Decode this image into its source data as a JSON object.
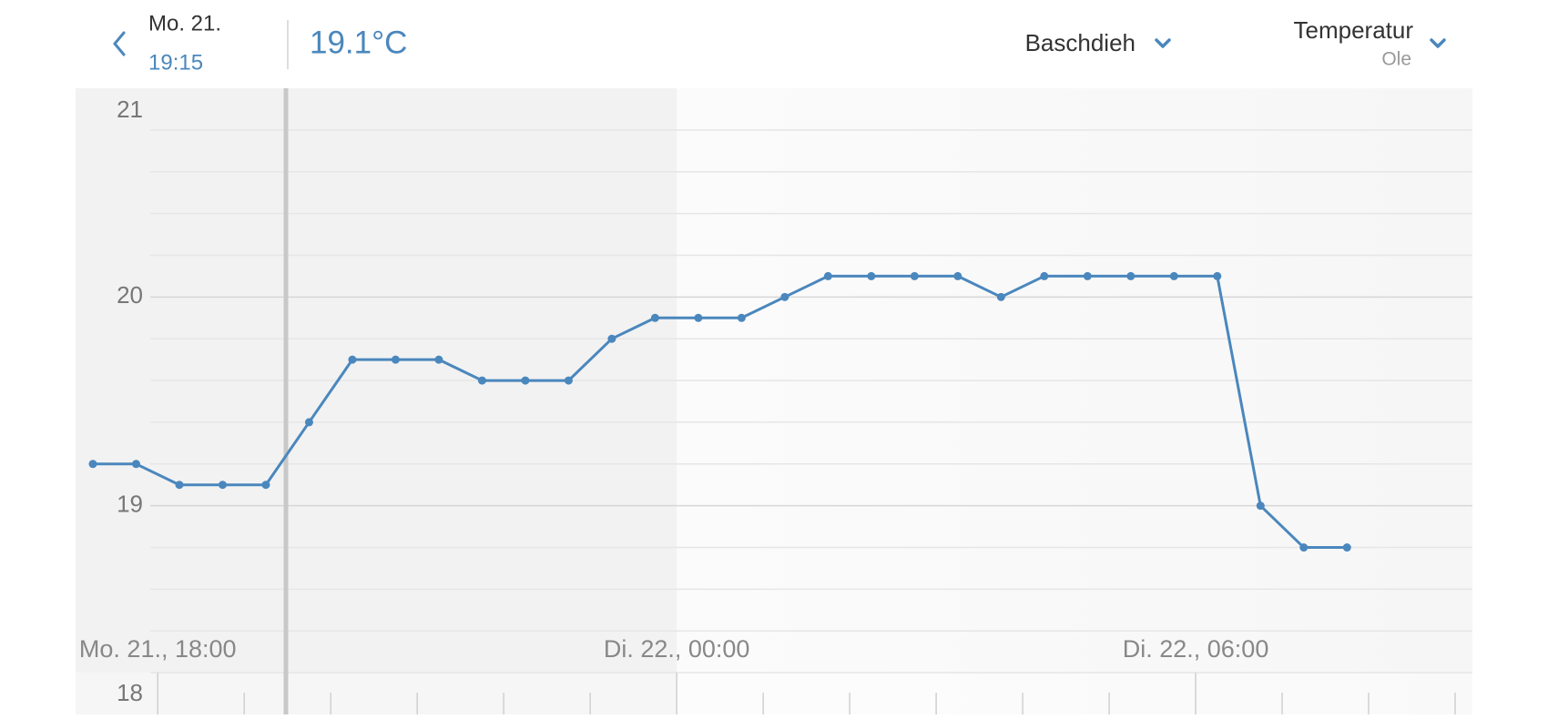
{
  "header": {
    "date": "Mo. 21.",
    "time": "19:15",
    "current_value": "19.1°C",
    "location": "Baschdieh",
    "metric": "Temperatur",
    "person": "Ole"
  },
  "chart_data": {
    "type": "line",
    "x": [
      17.25,
      17.75,
      18.25,
      18.75,
      19.25,
      19.75,
      20.25,
      20.75,
      21.25,
      21.75,
      22.25,
      22.75,
      23.25,
      23.75,
      24.25,
      24.75,
      25.25,
      25.75,
      26.25,
      26.75,
      27.25,
      27.75,
      28.25,
      28.75,
      29.25,
      29.75,
      30.25,
      30.75,
      31.25,
      31.75
    ],
    "series": [
      {
        "name": "Temperatur",
        "color": "#4a87bd",
        "values": [
          19.2,
          19.2,
          19.1,
          19.1,
          19.1,
          19.4,
          19.7,
          19.7,
          19.7,
          19.6,
          19.6,
          19.6,
          19.8,
          19.9,
          19.9,
          19.9,
          20.0,
          20.1,
          20.1,
          20.1,
          20.1,
          20.0,
          20.1,
          20.1,
          20.1,
          20.1,
          20.1,
          19.0,
          18.8,
          18.8
        ]
      }
    ],
    "xlim": [
      17.05,
      33.2
    ],
    "xticks": [
      {
        "value": 18,
        "label": "Mo. 21., 18:00"
      },
      {
        "value": 24,
        "label": "Di. 22., 00:00"
      },
      {
        "value": 30,
        "label": "Di. 22., 06:00"
      }
    ],
    "x_minor_ticks": [
      18,
      19,
      20,
      21,
      22,
      23,
      24,
      25,
      26,
      27,
      28,
      29,
      30,
      31,
      32,
      33
    ],
    "ylim": [
      18,
      21
    ],
    "yticks": [
      18,
      19,
      20,
      21
    ],
    "y_minor_ticks": [
      18.2,
      18.4,
      18.6,
      18.8,
      19.2,
      19.4,
      19.6,
      19.8,
      20.2,
      20.4,
      20.6,
      20.8
    ],
    "grid": true
  }
}
